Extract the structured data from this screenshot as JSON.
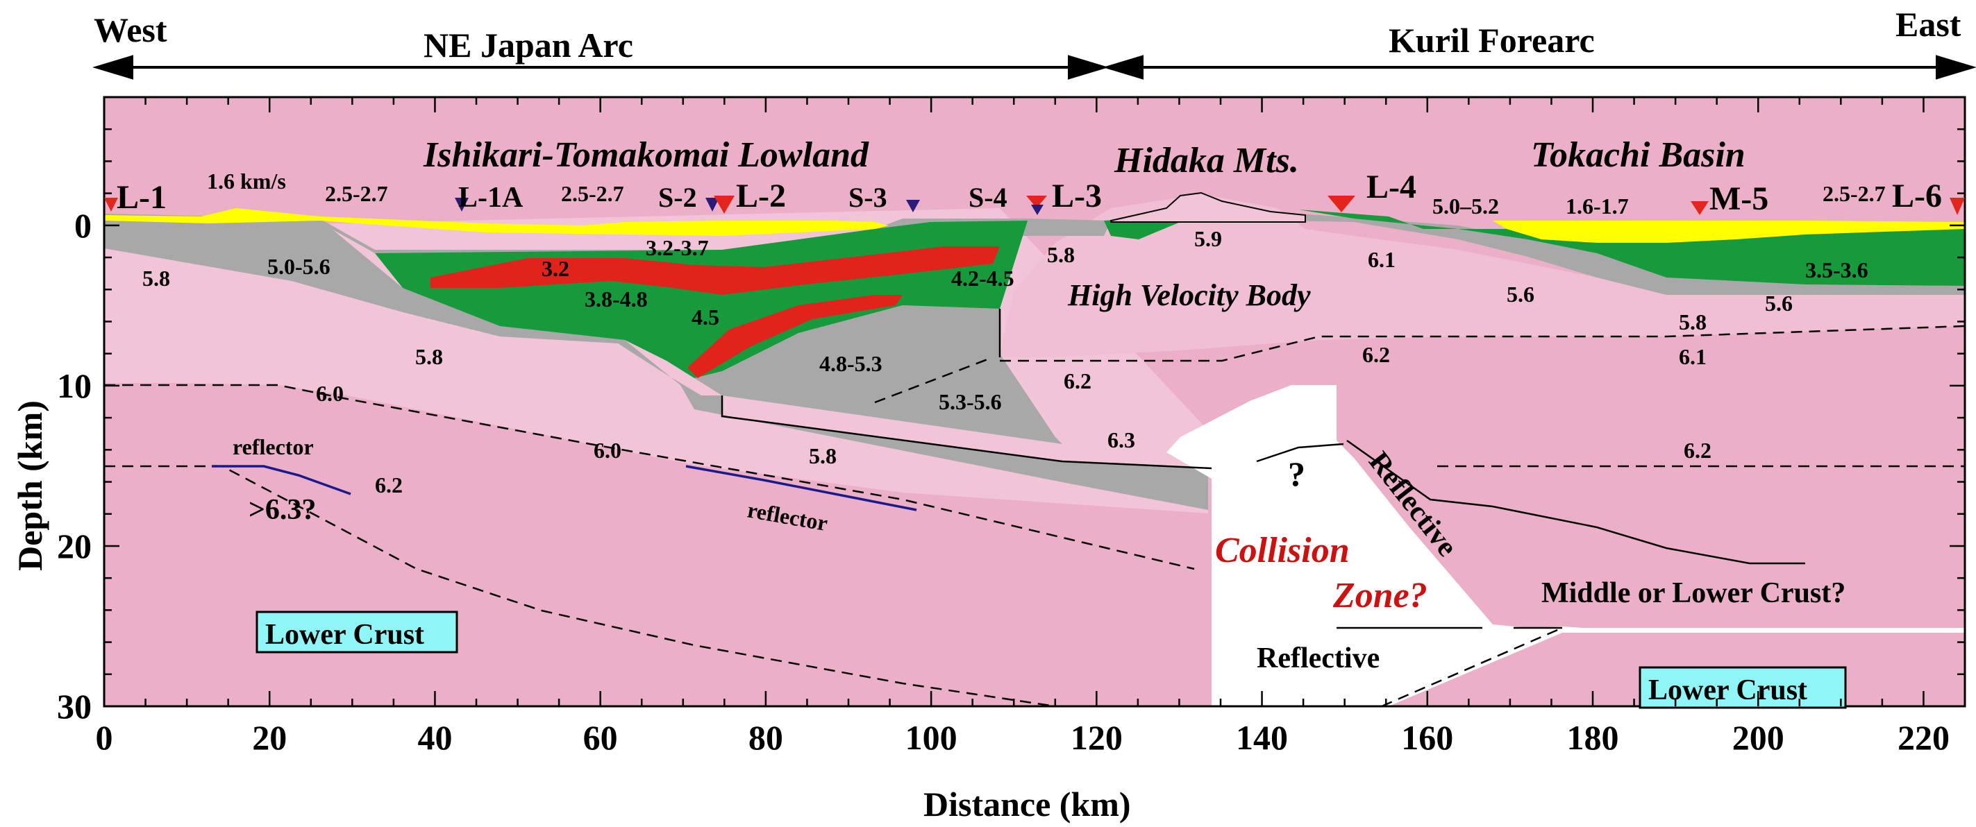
{
  "header": {
    "west": "West",
    "east": "East",
    "ne_japan_arc": "NE Japan Arc",
    "kuril_forearc": "Kuril Forearc"
  },
  "regions": {
    "ishikari": "Ishikari-Tomakomai Lowland",
    "hidaka": "Hidaka Mts.",
    "tokachi": "Tokachi Basin",
    "hvb": "High Velocity Body",
    "collision_1": "Collision",
    "collision_2": "Zone?",
    "mid_lower": "Middle or Lower Crust?",
    "reflective_slant": "Reflective",
    "reflective_bottom": "Reflective",
    "lower_crust_left": "Lower Crust",
    "lower_crust_right": "Lower Crust",
    "question": "?"
  },
  "stations": [
    "L-1",
    "L-1A",
    "S-2",
    "L-2",
    "S-3",
    "S-4",
    "L-3",
    "L-4",
    "M-5",
    "L-6"
  ],
  "velocity_labels": [
    "1.6 km/s",
    "2.5-2.7",
    "2.5-2.7",
    "2.5-2.7",
    "5.0–5.2",
    "1.6-1.7",
    "5.8",
    "5.0-5.6",
    "3.2-3.7",
    "3.2",
    "3.8-4.8",
    "4.2-4.5",
    "4.5",
    "5.8",
    "5.9",
    "6.1",
    "5.6",
    "3.5-3.6",
    "5.6",
    "5.8",
    "5.8",
    "6.1",
    "6.2",
    "6.2",
    "6.0",
    "4.8-5.3",
    "5.3-5.6",
    "6.3",
    "6.0",
    "5.8",
    "6.2",
    "6.2",
    "reflector",
    "reflector",
    ">6.3?"
  ],
  "axes": {
    "x_label": "Distance (km)",
    "y_label": "Depth (km)",
    "x_ticks": [
      "0",
      "20",
      "40",
      "60",
      "80",
      "100",
      "120",
      "140",
      "160",
      "180",
      "200",
      "220"
    ],
    "y_ticks": [
      "0",
      "10",
      "20",
      "30"
    ],
    "x_range": [
      0,
      225
    ],
    "y_range": [
      -8,
      30
    ]
  },
  "colors": {
    "lower_pink": "#ebb0c8",
    "upper_pink": "#f2c4d8",
    "gray": "#a8a8a8",
    "green": "#169a3c",
    "red": "#e0241c",
    "yellow": "#ffff00",
    "white": "#ffffff",
    "cyan_box": "#8ff5f5",
    "reflector_blue": "#1a1a8a",
    "red_triangle": "#e2261e",
    "blue_triangle": "#2a1a7a",
    "collision_text": "#cc1111"
  }
}
